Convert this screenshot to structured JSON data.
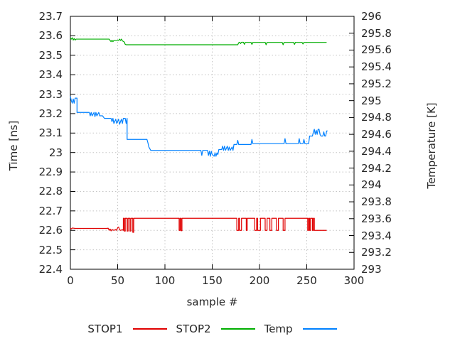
{
  "chart_data": {
    "type": "line",
    "title": "",
    "xlabel": "sample #",
    "ylabel": "Time [ns]",
    "y2label": "Temperature [K]",
    "xlim": [
      0,
      300
    ],
    "ylim": [
      22.4,
      23.7
    ],
    "y2lim": [
      293,
      296
    ],
    "grid": true,
    "legend_position": "bottom-center",
    "x_tick_labels": [
      "0",
      "50",
      "100",
      "150",
      "200",
      "250",
      "300"
    ],
    "y_tick_labels": [
      "23.7",
      "23.6",
      "23.5",
      "23.4",
      "23.3",
      "23.2",
      "23.1",
      "23",
      "22.9",
      "22.8",
      "22.7",
      "22.6",
      "22.5",
      "22.4"
    ],
    "y2_tick_labels": [
      "296",
      "295.8",
      "295.6",
      "295.4",
      "295.2",
      "295",
      "294.8",
      "294.6",
      "294.4",
      "294.2",
      "294",
      "293.8",
      "293.6",
      "293.4",
      "293.2",
      "293"
    ],
    "colors": {
      "stop1": "#e00000",
      "stop2": "#00ae00",
      "temp": "#0080ff",
      "grid": "#c4c4c4",
      "axis": "#000000",
      "text": "#262626",
      "background": "#ffffff"
    },
    "series": [
      {
        "name": "STOP1",
        "axis": "y1",
        "unit": "ns",
        "color": "#e00000",
        "points": [
          [
            0,
            22.612
          ],
          [
            1,
            22.607
          ],
          [
            2,
            22.612
          ],
          [
            5,
            22.61
          ],
          [
            38,
            22.61
          ],
          [
            40,
            22.611
          ],
          [
            41,
            22.6
          ],
          [
            42,
            22.607
          ],
          [
            43,
            22.597
          ],
          [
            44,
            22.604
          ],
          [
            46,
            22.6
          ],
          [
            48,
            22.604
          ],
          [
            49,
            22.6
          ],
          [
            50,
            22.614
          ],
          [
            51,
            22.617
          ],
          [
            52,
            22.603
          ],
          [
            53,
            22.6
          ],
          [
            55,
            22.603
          ],
          [
            56,
            22.6
          ],
          [
            56,
            22.662
          ],
          [
            57,
            22.662
          ],
          [
            57,
            22.596
          ],
          [
            58,
            22.596
          ],
          [
            58,
            22.662
          ],
          [
            60,
            22.662
          ],
          [
            60,
            22.596
          ],
          [
            61,
            22.596
          ],
          [
            61,
            22.662
          ],
          [
            63,
            22.662
          ],
          [
            63,
            22.596
          ],
          [
            64,
            22.596
          ],
          [
            64,
            22.662
          ],
          [
            66,
            22.662
          ],
          [
            66,
            22.59
          ],
          [
            67,
            22.59
          ],
          [
            67,
            22.662
          ],
          [
            115,
            22.662
          ],
          [
            115,
            22.6
          ],
          [
            116,
            22.6
          ],
          [
            116,
            22.662
          ],
          [
            117,
            22.662
          ],
          [
            117,
            22.598
          ],
          [
            118,
            22.598
          ],
          [
            118,
            22.662
          ],
          [
            176,
            22.662
          ],
          [
            176,
            22.6
          ],
          [
            178,
            22.6
          ],
          [
            178,
            22.662
          ],
          [
            179,
            22.662
          ],
          [
            179,
            22.6
          ],
          [
            181,
            22.6
          ],
          [
            181,
            22.662
          ],
          [
            186,
            22.662
          ],
          [
            186,
            22.6
          ],
          [
            187,
            22.6
          ],
          [
            187,
            22.662
          ],
          [
            195,
            22.662
          ],
          [
            195,
            22.6
          ],
          [
            197,
            22.6
          ],
          [
            197,
            22.662
          ],
          [
            198,
            22.662
          ],
          [
            198,
            22.6
          ],
          [
            201,
            22.6
          ],
          [
            201,
            22.662
          ],
          [
            206,
            22.662
          ],
          [
            206,
            22.6
          ],
          [
            208,
            22.6
          ],
          [
            208,
            22.662
          ],
          [
            211,
            22.662
          ],
          [
            211,
            22.6
          ],
          [
            213,
            22.6
          ],
          [
            213,
            22.662
          ],
          [
            218,
            22.662
          ],
          [
            218,
            22.6
          ],
          [
            220,
            22.6
          ],
          [
            220,
            22.662
          ],
          [
            225,
            22.662
          ],
          [
            225,
            22.6
          ],
          [
            227,
            22.6
          ],
          [
            227,
            22.662
          ],
          [
            251,
            22.662
          ],
          [
            251,
            22.6
          ],
          [
            252,
            22.6
          ],
          [
            252,
            22.662
          ],
          [
            253,
            22.662
          ],
          [
            253,
            22.6
          ],
          [
            254,
            22.6
          ],
          [
            254,
            22.662
          ],
          [
            256,
            22.662
          ],
          [
            256,
            22.6
          ],
          [
            257,
            22.6
          ],
          [
            257,
            22.662
          ],
          [
            258,
            22.662
          ],
          [
            258,
            22.6
          ],
          [
            271,
            22.6
          ]
        ]
      },
      {
        "name": "STOP2",
        "axis": "y1",
        "unit": "ns",
        "color": "#00ae00",
        "points": [
          [
            0,
            23.588
          ],
          [
            1,
            23.583
          ],
          [
            2,
            23.59
          ],
          [
            3,
            23.578
          ],
          [
            4,
            23.586
          ],
          [
            5,
            23.578
          ],
          [
            6,
            23.583
          ],
          [
            41,
            23.583
          ],
          [
            42,
            23.576
          ],
          [
            43,
            23.57
          ],
          [
            44,
            23.577
          ],
          [
            45,
            23.57
          ],
          [
            46,
            23.576
          ],
          [
            51,
            23.576
          ],
          [
            52,
            23.583
          ],
          [
            53,
            23.576
          ],
          [
            54,
            23.583
          ],
          [
            55,
            23.574
          ],
          [
            57,
            23.568
          ],
          [
            58,
            23.556
          ],
          [
            59,
            23.554
          ],
          [
            151,
            23.554
          ],
          [
            177,
            23.554
          ],
          [
            178,
            23.564
          ],
          [
            179,
            23.567
          ],
          [
            180,
            23.56
          ],
          [
            181,
            23.567
          ],
          [
            183,
            23.567
          ],
          [
            184,
            23.556
          ],
          [
            185,
            23.566
          ],
          [
            191,
            23.566
          ],
          [
            192,
            23.556
          ],
          [
            193,
            23.566
          ],
          [
            206,
            23.566
          ],
          [
            207,
            23.554
          ],
          [
            208,
            23.566
          ],
          [
            224,
            23.566
          ],
          [
            225,
            23.554
          ],
          [
            226,
            23.566
          ],
          [
            236,
            23.566
          ],
          [
            237,
            23.556
          ],
          [
            238,
            23.566
          ],
          [
            245,
            23.566
          ],
          [
            246,
            23.558
          ],
          [
            247,
            23.566
          ],
          [
            271,
            23.566
          ]
        ]
      },
      {
        "name": "Temp",
        "axis": "y2",
        "unit": "K",
        "color": "#0080ff",
        "points": [
          [
            0,
            295.05
          ],
          [
            1,
            295.0
          ],
          [
            2,
            294.97
          ],
          [
            3,
            295.02
          ],
          [
            4,
            294.97
          ],
          [
            5,
            295.03
          ],
          [
            7,
            295.03
          ],
          [
            7,
            294.86
          ],
          [
            20,
            294.86
          ],
          [
            21,
            294.82
          ],
          [
            22,
            294.86
          ],
          [
            23,
            294.82
          ],
          [
            25,
            294.86
          ],
          [
            26,
            294.81
          ],
          [
            27,
            294.86
          ],
          [
            28,
            294.82
          ],
          [
            30,
            294.86
          ],
          [
            31,
            294.82
          ],
          [
            34,
            294.82
          ],
          [
            36,
            294.79
          ],
          [
            43,
            294.79
          ],
          [
            44,
            294.75
          ],
          [
            45,
            294.79
          ],
          [
            46,
            294.73
          ],
          [
            48,
            294.78
          ],
          [
            49,
            294.73
          ],
          [
            51,
            294.78
          ],
          [
            52,
            294.72
          ],
          [
            54,
            294.78
          ],
          [
            55,
            294.73
          ],
          [
            56,
            294.79
          ],
          [
            58,
            294.79
          ],
          [
            59,
            294.73
          ],
          [
            60,
            294.79
          ],
          [
            60,
            294.54
          ],
          [
            81,
            294.54
          ],
          [
            82,
            294.5
          ],
          [
            83,
            294.45
          ],
          [
            85,
            294.41
          ],
          [
            138,
            294.41
          ],
          [
            139,
            294.35
          ],
          [
            140,
            294.41
          ],
          [
            145,
            294.41
          ],
          [
            146,
            294.35
          ],
          [
            147,
            294.4
          ],
          [
            148,
            294.34
          ],
          [
            149,
            294.4
          ],
          [
            150,
            294.36
          ],
          [
            152,
            294.34
          ],
          [
            153,
            294.38
          ],
          [
            154,
            294.34
          ],
          [
            155,
            294.38
          ],
          [
            156,
            294.36
          ],
          [
            157,
            294.42
          ],
          [
            160,
            294.42
          ],
          [
            161,
            294.46
          ],
          [
            162,
            294.41
          ],
          [
            163,
            294.46
          ],
          [
            164,
            294.41
          ],
          [
            166,
            294.46
          ],
          [
            167,
            294.41
          ],
          [
            168,
            294.45
          ],
          [
            169,
            294.41
          ],
          [
            171,
            294.45
          ],
          [
            172,
            294.41
          ],
          [
            173,
            294.48
          ],
          [
            176,
            294.48
          ],
          [
            177,
            294.53
          ],
          [
            178,
            294.48
          ],
          [
            191,
            294.48
          ],
          [
            192,
            294.54
          ],
          [
            193,
            294.49
          ],
          [
            226,
            294.49
          ],
          [
            227,
            294.55
          ],
          [
            228,
            294.49
          ],
          [
            241,
            294.49
          ],
          [
            242,
            294.55
          ],
          [
            243,
            294.49
          ],
          [
            246,
            294.49
          ],
          [
            247,
            294.54
          ],
          [
            248,
            294.49
          ],
          [
            252,
            294.49
          ],
          [
            253,
            294.58
          ],
          [
            256,
            294.58
          ],
          [
            257,
            294.63
          ],
          [
            258,
            294.66
          ],
          [
            259,
            294.6
          ],
          [
            260,
            294.65
          ],
          [
            261,
            294.6
          ],
          [
            262,
            294.66
          ],
          [
            263,
            294.66
          ],
          [
            264,
            294.6
          ],
          [
            265,
            294.58
          ],
          [
            267,
            294.58
          ],
          [
            268,
            294.63
          ],
          [
            269,
            294.58
          ],
          [
            270,
            294.58
          ],
          [
            271,
            294.64
          ],
          [
            272,
            294.64
          ]
        ]
      }
    ]
  },
  "legend": {
    "items": [
      "STOP1",
      "STOP2",
      "Temp"
    ]
  }
}
